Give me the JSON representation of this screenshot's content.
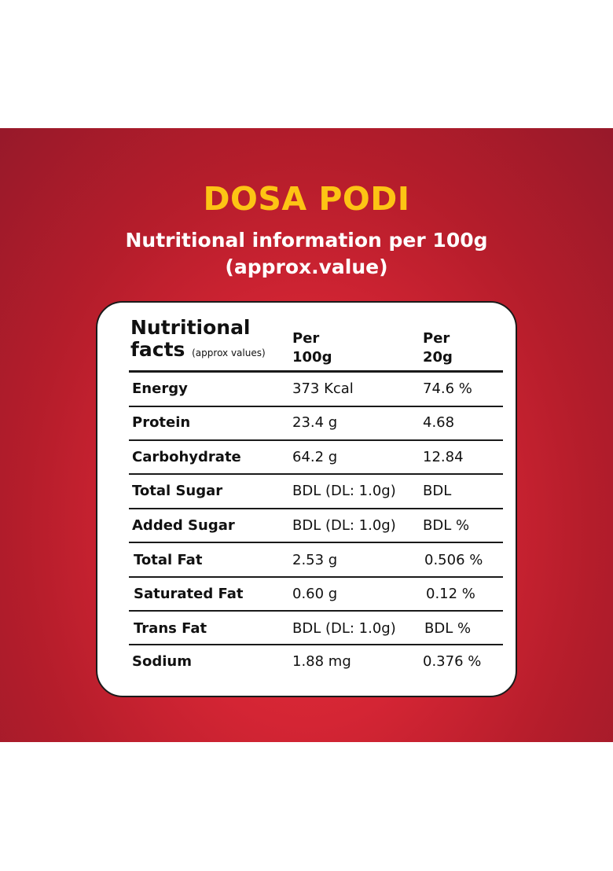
{
  "title": "DOSA PODI",
  "subtitle_line1": "Nutritional information per 100g",
  "subtitle_line2": "(approx.value)",
  "table": {
    "header": {
      "facts_line1": "Nutritional",
      "facts_line2": "facts",
      "facts_note": "(approx values)",
      "col1_line1": "Per",
      "col1_line2": "100g",
      "col2_line1": "Per",
      "col2_line2": "20g"
    },
    "rows": [
      {
        "name": "Energy",
        "per100g": "373 Kcal",
        "per20g": "74.6 %"
      },
      {
        "name": "Protein",
        "per100g": "23.4 g",
        "per20g": "4.68"
      },
      {
        "name": "Carbohydrate",
        "per100g": "64.2 g",
        "per20g": "12.84"
      },
      {
        "name": "Total Sugar",
        "per100g": "BDL (DL: 1.0g)",
        "per20g": "BDL"
      },
      {
        "name": "Added Sugar",
        "per100g": "BDL (DL: 1.0g)",
        "per20g": "BDL %"
      },
      {
        "name": "Total Fat",
        "per100g": "2.53 g",
        "per20g": "0.506 %"
      },
      {
        "name": "Saturated Fat",
        "per100g": "0.60 g",
        "per20g": "0.12 %"
      },
      {
        "name": "Trans Fat",
        "per100g": "BDL (DL: 1.0g)",
        "per20g": "BDL %"
      },
      {
        "name": "Sodium",
        "per100g": "1.88 mg",
        "per20g": "0.376 %"
      }
    ]
  },
  "colors": {
    "background_red": "#d42534",
    "title_yellow": "#fdc414",
    "card_white": "#ffffff"
  }
}
